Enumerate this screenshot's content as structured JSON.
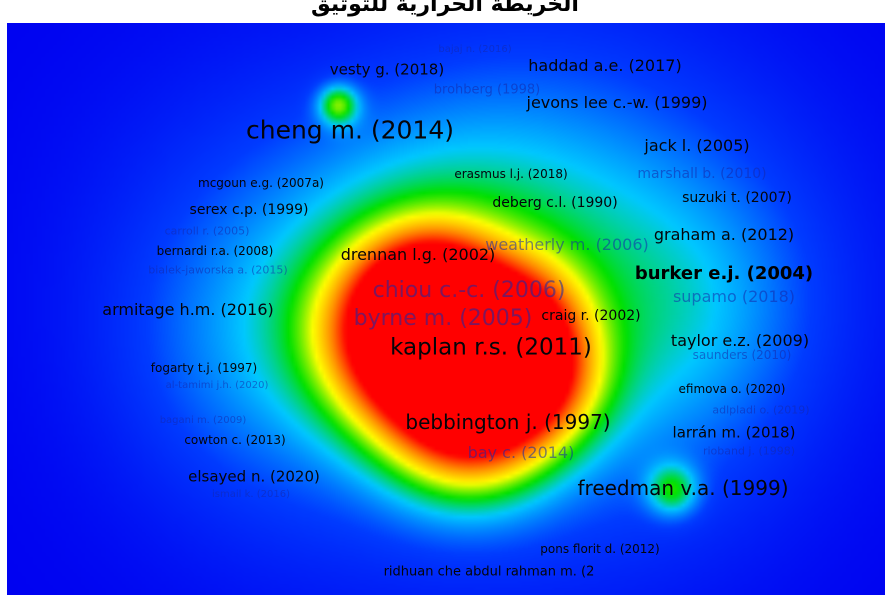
{
  "window": {
    "title": "الخريطة الحرارية للتوثيق"
  },
  "colors": {
    "background": "#0000f0",
    "cool": "#00c8ff",
    "mid": "#00e000",
    "warm": "#ffff00",
    "hot": "#ff0000"
  },
  "labels": [
    {
      "text": "bajaj n. (2016)",
      "size": 10,
      "weight": "faint"
    },
    {
      "text": "vesty g. (2018)",
      "size": 15,
      "weight": "normal"
    },
    {
      "text": "haddad a.e. (2017)",
      "size": 16,
      "weight": "normal"
    },
    {
      "text": "brohberg (1998)",
      "size": 13,
      "weight": "faint"
    },
    {
      "text": "jevons lee c.-w. (1999)",
      "size": 16,
      "weight": "normal"
    },
    {
      "text": "cheng m. (2014)",
      "size": 25,
      "weight": "normal"
    },
    {
      "text": "jack l. (2005)",
      "size": 16,
      "weight": "normal"
    },
    {
      "text": "erasmus l.j. (2018)",
      "size": 12,
      "weight": "normal"
    },
    {
      "text": "marshall b. (2010)",
      "size": 14,
      "weight": "faint"
    },
    {
      "text": "mcgoun e.g. (2007a)",
      "size": 12,
      "weight": "normal"
    },
    {
      "text": "deberg c.l. (1990)",
      "size": 14,
      "weight": "normal"
    },
    {
      "text": "suzuki t. (2007)",
      "size": 14,
      "weight": "normal"
    },
    {
      "text": "serex c.p. (1999)",
      "size": 14,
      "weight": "normal"
    },
    {
      "text": "carroll r. (2005)",
      "size": 11,
      "weight": "faint"
    },
    {
      "text": "graham a. (2012)",
      "size": 16,
      "weight": "normal"
    },
    {
      "text": "bernardi r.a. (2008)",
      "size": 12,
      "weight": "normal"
    },
    {
      "text": "drennan l.g. (2002)",
      "size": 16,
      "weight": "normal"
    },
    {
      "text": "weatherly m. (2006)",
      "size": 16,
      "weight": "faint"
    },
    {
      "text": "bialek-jaworska a. (2015)",
      "size": 11,
      "weight": "faint"
    },
    {
      "text": "burker e.j. (2004)",
      "size": 18,
      "weight": "bold"
    },
    {
      "text": "chiou c.-c. (2006)",
      "size": 22,
      "weight": "faint"
    },
    {
      "text": "supamo (2018)",
      "size": 16,
      "weight": "faint"
    },
    {
      "text": "armitage h.m. (2016)",
      "size": 16,
      "weight": "normal"
    },
    {
      "text": "byrne m. (2005)",
      "size": 22,
      "weight": "faint"
    },
    {
      "text": "craig r. (2002)",
      "size": 14,
      "weight": "normal"
    },
    {
      "text": "kaplan r.s. (2011)",
      "size": 23,
      "weight": "normal"
    },
    {
      "text": "taylor e.z. (2009)",
      "size": 16,
      "weight": "normal"
    },
    {
      "text": "saunders (2010)",
      "size": 12,
      "weight": "faint"
    },
    {
      "text": "fogarty t.j. (1997)",
      "size": 12,
      "weight": "normal"
    },
    {
      "text": "al-tamimi j.h. (2020)",
      "size": 10,
      "weight": "faint"
    },
    {
      "text": "efimova o. (2020)",
      "size": 12,
      "weight": "normal"
    },
    {
      "text": "bagani m. (2009)",
      "size": 10,
      "weight": "faint"
    },
    {
      "text": "adlpladi o. (2019)",
      "size": 11,
      "weight": "faint"
    },
    {
      "text": "bebbington j. (1997)",
      "size": 20,
      "weight": "normal"
    },
    {
      "text": "cowton c. (2013)",
      "size": 12,
      "weight": "normal"
    },
    {
      "text": "larrán m. (2018)",
      "size": 15,
      "weight": "normal"
    },
    {
      "text": "bay c. (2014)",
      "size": 16,
      "weight": "faint"
    },
    {
      "text": "rioband j. (1998)",
      "size": 11,
      "weight": "faint"
    },
    {
      "text": "elsayed n. (2020)",
      "size": 15,
      "weight": "normal"
    },
    {
      "text": "freedman v.a. (1999)",
      "size": 20,
      "weight": "normal"
    },
    {
      "text": "ismail k. (2016)",
      "size": 10,
      "weight": "faint"
    },
    {
      "text": "pons florit d. (2012)",
      "size": 12,
      "weight": "normal"
    },
    {
      "text": "ridhuan che abdul rahman m. (2",
      "size": 13,
      "weight": "normal"
    }
  ]
}
